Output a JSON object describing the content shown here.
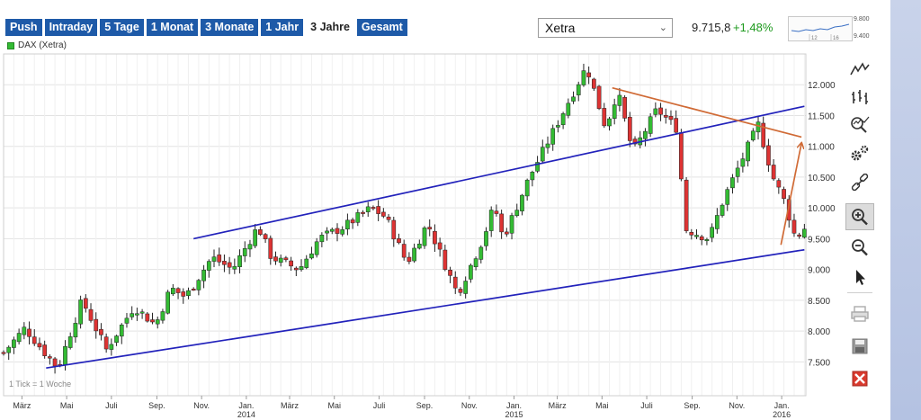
{
  "tabs": [
    {
      "label": "Push",
      "active": false
    },
    {
      "label": "Intraday",
      "active": false
    },
    {
      "label": "5 Tage",
      "active": false
    },
    {
      "label": "1 Monat",
      "active": false
    },
    {
      "label": "3 Monate",
      "active": false
    },
    {
      "label": "1 Jahr",
      "active": false
    },
    {
      "label": "3 Jahre",
      "active": true
    },
    {
      "label": "Gesamt",
      "active": false
    }
  ],
  "exchange": {
    "selected": "Xetra"
  },
  "quote": {
    "price": "9.715,8",
    "change": "+1,48%"
  },
  "spark": {
    "high_label": "9.800",
    "low_label": "9.400",
    "mid_labels": [
      "12",
      "16"
    ]
  },
  "legend": {
    "label": "DAX (Xetra)",
    "color": "#33bb33"
  },
  "footnote": "1 Tick = 1 Woche",
  "colors": {
    "up": "#33bb33",
    "down": "#dd3333",
    "trendline": "#2222bb",
    "resistance": "#d06a35",
    "grid": "#e3e3e3",
    "tab": "#1e5aa8",
    "positive": "#1e9a1e"
  },
  "chart_data": {
    "type": "candlestick",
    "title": "",
    "series_name": "DAX (Xetra)",
    "interval": "weekly",
    "y_ticks": [
      7500,
      8000,
      8500,
      9000,
      9500,
      10000,
      10500,
      11000,
      11500,
      12000
    ],
    "y_tick_labels": [
      "7.500",
      "8.000",
      "8.500",
      "9.000",
      "9.500",
      "10.000",
      "10.500",
      "11.000",
      "11.500",
      "12.000"
    ],
    "ylim": [
      6950,
      12500
    ],
    "x_start": "2013-02-04",
    "x_end": "2016-02-03",
    "x_ticks": [
      {
        "date": "2013-03-01",
        "label": "März"
      },
      {
        "date": "2013-05-01",
        "label": "Mai"
      },
      {
        "date": "2013-07-01",
        "label": "Juli"
      },
      {
        "date": "2013-09-01",
        "label": "Sep."
      },
      {
        "date": "2013-11-01",
        "label": "Nov."
      },
      {
        "date": "2014-01-01",
        "label": "Jan.",
        "year": "2014"
      },
      {
        "date": "2014-03-01",
        "label": "März"
      },
      {
        "date": "2014-05-01",
        "label": "Mai"
      },
      {
        "date": "2014-07-01",
        "label": "Juli"
      },
      {
        "date": "2014-09-01",
        "label": "Sep."
      },
      {
        "date": "2014-11-01",
        "label": "Nov."
      },
      {
        "date": "2015-01-01",
        "label": "Jan.",
        "year": "2015"
      },
      {
        "date": "2015-03-01",
        "label": "März"
      },
      {
        "date": "2015-05-01",
        "label": "Mai"
      },
      {
        "date": "2015-07-01",
        "label": "Juli"
      },
      {
        "date": "2015-09-01",
        "label": "Sep."
      },
      {
        "date": "2015-11-01",
        "label": "Nov."
      },
      {
        "date": "2016-01-01",
        "label": "Jan.",
        "year": "2016"
      }
    ],
    "anchors": [
      [
        "2013-02-04",
        7650
      ],
      [
        "2013-03-05",
        8050
      ],
      [
        "2013-04-01",
        7650
      ],
      [
        "2013-04-19",
        7400
      ],
      [
        "2013-05-22",
        8500
      ],
      [
        "2013-06-24",
        7700
      ],
      [
        "2013-08-01",
        8400
      ],
      [
        "2013-08-30",
        8100
      ],
      [
        "2013-09-20",
        8700
      ],
      [
        "2013-10-10",
        8550
      ],
      [
        "2013-11-15",
        9200
      ],
      [
        "2013-12-13",
        9000
      ],
      [
        "2014-01-17",
        9700
      ],
      [
        "2014-02-04",
        9200
      ],
      [
        "2014-03-14",
        9000
      ],
      [
        "2014-04-10",
        9500
      ],
      [
        "2014-05-15",
        9700
      ],
      [
        "2014-06-20",
        10000
      ],
      [
        "2014-07-10",
        9850
      ],
      [
        "2014-08-08",
        9100
      ],
      [
        "2014-09-05",
        9750
      ],
      [
        "2014-10-16",
        8600
      ],
      [
        "2014-11-20",
        9500
      ],
      [
        "2014-12-05",
        10050
      ],
      [
        "2014-12-17",
        9500
      ],
      [
        "2015-01-22",
        10500
      ],
      [
        "2015-02-26",
        11300
      ],
      [
        "2015-04-10",
        12300
      ],
      [
        "2015-05-06",
        11300
      ],
      [
        "2015-05-22",
        11900
      ],
      [
        "2015-06-12",
        10900
      ],
      [
        "2015-07-15",
        11600
      ],
      [
        "2015-08-10",
        11300
      ],
      [
        "2015-08-24",
        9650
      ],
      [
        "2015-09-24",
        9500
      ],
      [
        "2015-10-14",
        10150
      ],
      [
        "2015-11-30",
        11350
      ],
      [
        "2015-12-20",
        10500
      ],
      [
        "2016-01-05",
        10100
      ],
      [
        "2016-01-20",
        9500
      ],
      [
        "2016-02-03",
        9700
      ]
    ],
    "trendlines": [
      {
        "name": "channel-upper",
        "color": "#2222bb",
        "points": [
          [
            "2013-10-21",
            9500
          ],
          [
            "2016-02-01",
            11650
          ]
        ]
      },
      {
        "name": "channel-lower",
        "color": "#2222bb",
        "points": [
          [
            "2013-04-03",
            7400
          ],
          [
            "2016-02-01",
            9320
          ]
        ]
      },
      {
        "name": "resistance",
        "color": "#d06a35",
        "points": [
          [
            "2015-05-15",
            11950
          ],
          [
            "2016-01-28",
            11150
          ]
        ]
      },
      {
        "name": "projection",
        "color": "#d06a35",
        "arrow": true,
        "points": [
          [
            "2015-12-31",
            9400
          ],
          [
            "2016-01-28",
            11050
          ]
        ]
      }
    ],
    "grid": true,
    "legend_position": "top-left"
  }
}
